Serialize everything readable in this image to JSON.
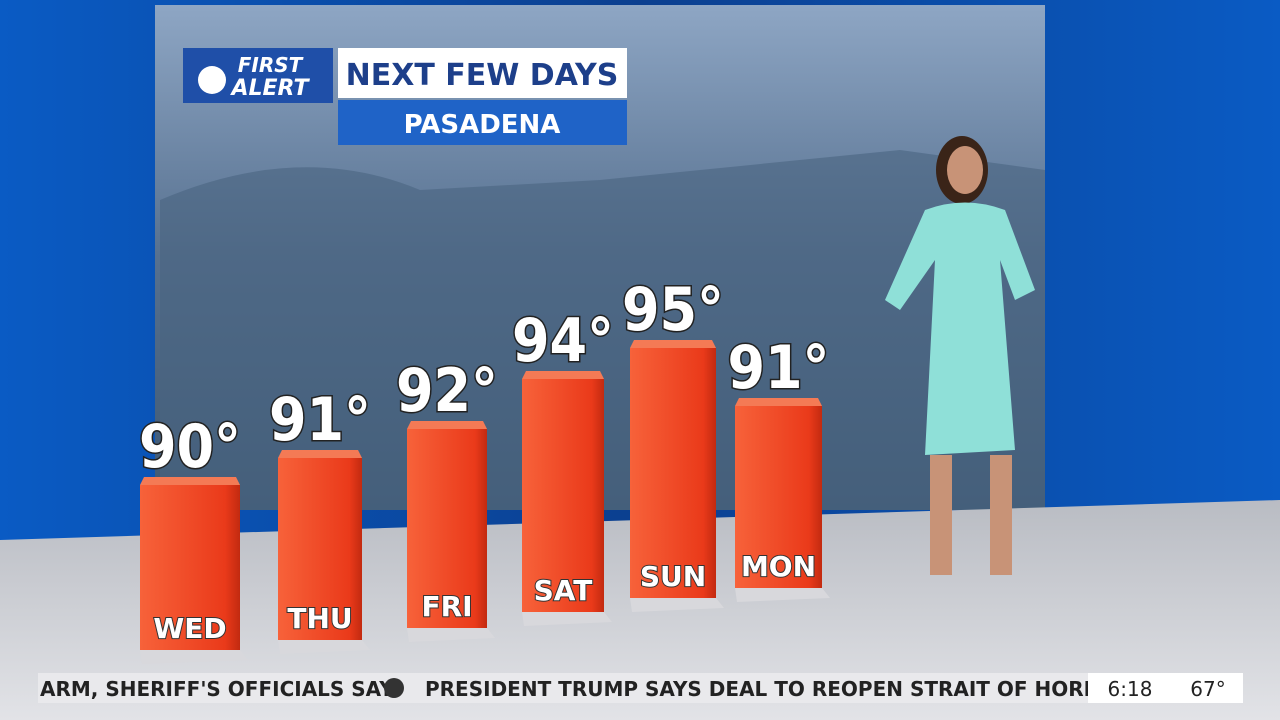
{
  "logo": {
    "line1": "FIRST",
    "line2": "ALERT"
  },
  "header": {
    "title": "NEXT FEW DAYS",
    "location": "PASADENA"
  },
  "chart_data": {
    "type": "bar",
    "categories": [
      "WED",
      "THU",
      "FRI",
      "SAT",
      "SUN",
      "MON"
    ],
    "values": [
      90,
      91,
      92,
      94,
      95,
      91
    ],
    "value_labels": [
      "90°",
      "91°",
      "92°",
      "94°",
      "95°",
      "91°"
    ],
    "color": "#f04a23"
  },
  "ticker": {
    "headline_1": "ARM, SHERIFF'S OFFICIALS SAY",
    "headline_2": "PRESIDENT TRUMP SAYS DEAL TO REOPEN STRAIT OF HORMUZ",
    "time": "6:18",
    "temperature": "67°"
  }
}
